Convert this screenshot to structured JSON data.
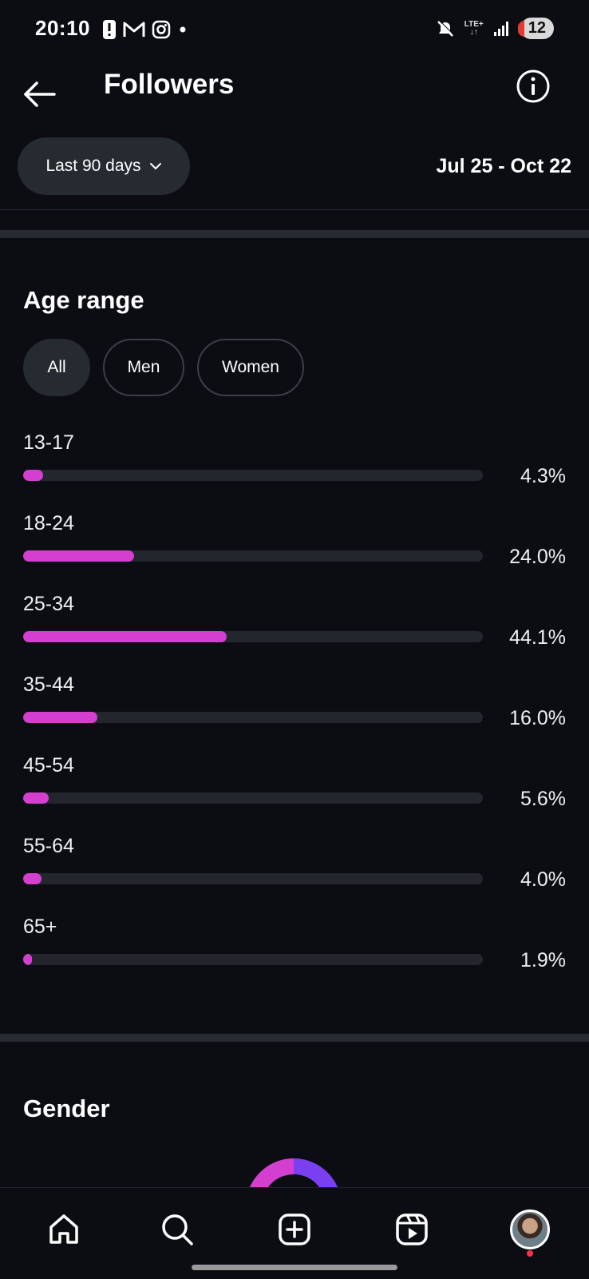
{
  "status_bar": {
    "time": "20:10",
    "network": "LTE+",
    "battery": "12"
  },
  "header": {
    "title": "Followers"
  },
  "filter": {
    "range_label": "Last 90 days",
    "date_range": "Jul 25 - Oct 22"
  },
  "age_section": {
    "title": "Age range",
    "chips": [
      "All",
      "Men",
      "Women"
    ],
    "selected_chip": "All",
    "rows": [
      {
        "label": "13-17",
        "percent": "4.3%",
        "value": 4.3
      },
      {
        "label": "18-24",
        "percent": "24.0%",
        "value": 24.0
      },
      {
        "label": "25-34",
        "percent": "44.1%",
        "value": 44.1
      },
      {
        "label": "35-44",
        "percent": "16.0%",
        "value": 16.0
      },
      {
        "label": "45-54",
        "percent": "5.6%",
        "value": 5.6
      },
      {
        "label": "55-64",
        "percent": "4.0%",
        "value": 4.0
      },
      {
        "label": "65+",
        "percent": "1.9%",
        "value": 1.9
      }
    ]
  },
  "gender_section": {
    "title": "Gender"
  },
  "colors": {
    "accent": "#d43fd0",
    "accent_secondary": "#7b3ff2",
    "background": "#0b0d12",
    "track": "#23262d"
  },
  "nav": {
    "items": [
      "home-icon",
      "search-icon",
      "create-icon",
      "reels-icon",
      "profile-avatar"
    ]
  }
}
